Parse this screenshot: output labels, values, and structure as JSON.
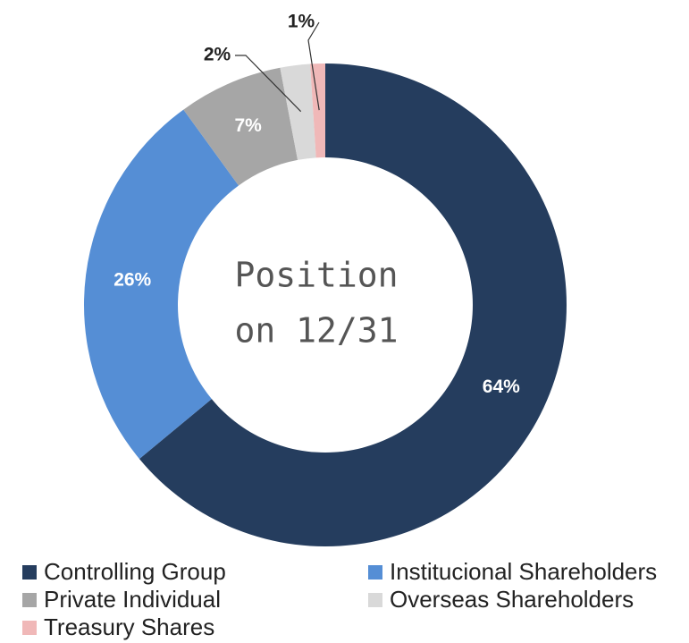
{
  "chart_data": {
    "type": "donut",
    "center_label": [
      "Position",
      "on 12/31"
    ],
    "categories": [
      "Controlling Group",
      "Institucional Shareholders",
      "Private Individual",
      "Overseas Shareholders",
      "Treasury Shares"
    ],
    "values": [
      64,
      26,
      7,
      2,
      1
    ],
    "value_labels": [
      "64%",
      "26%",
      "7%",
      "2%",
      "1%"
    ],
    "colors": [
      "#253d5e",
      "#558ed5",
      "#a6a6a6",
      "#d9d9d9",
      "#f0b8b8"
    ],
    "legend": "bottom"
  }
}
